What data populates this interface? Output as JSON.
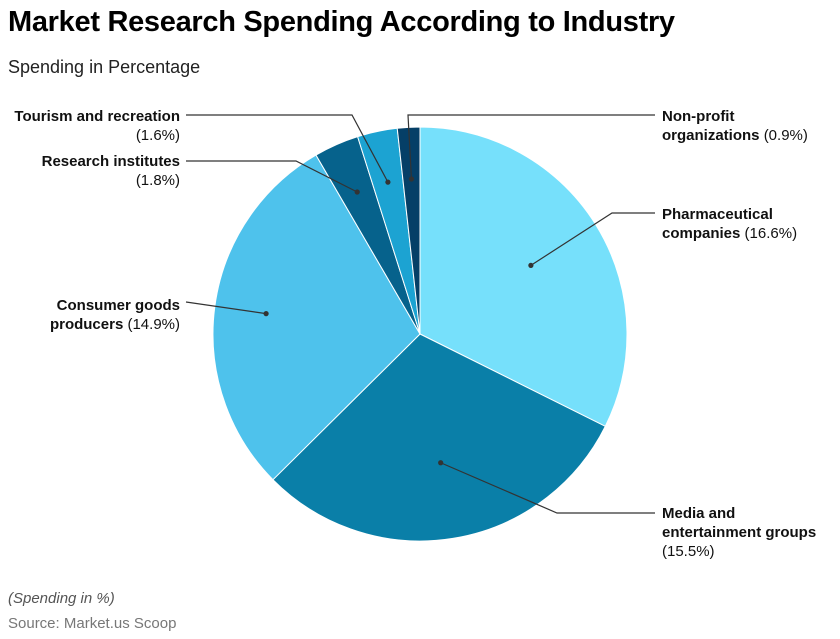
{
  "chart_data": {
    "type": "pie",
    "title": "Market Research Spending According to Industry",
    "subtitle": "Spending in Percentage",
    "note": "(Spending in %)",
    "source": "Source: Market.us Scoop",
    "slices": [
      {
        "name": "Pharmaceutical companies",
        "value": 16.6,
        "label_bold": "Pharmaceutical companies",
        "label_value": "(16.6%)",
        "color": "#76E0FB"
      },
      {
        "name": "Media and entertainment groups",
        "value": 15.5,
        "label_bold": "Media and entertainment groups",
        "label_value": "(15.5%)",
        "color": "#0A7FA8"
      },
      {
        "name": "Consumer goods producers",
        "value": 14.9,
        "label_bold": "Consumer goods producers",
        "label_value": "(14.9%)",
        "color": "#4EC2EC"
      },
      {
        "name": "Research institutes",
        "value": 1.8,
        "label_bold": "Research institutes",
        "label_value": "(1.8%)",
        "color": "#06628C"
      },
      {
        "name": "Tourism and recreation",
        "value": 1.6,
        "label_bold": "Tourism and recreation",
        "label_value": "(1.6%)",
        "color": "#1CA3D2"
      },
      {
        "name": "Non-profit organizations",
        "value": 0.9,
        "label_bold": "Non-profit organizations",
        "label_value": "(0.9%)",
        "color": "#053F67"
      }
    ]
  }
}
